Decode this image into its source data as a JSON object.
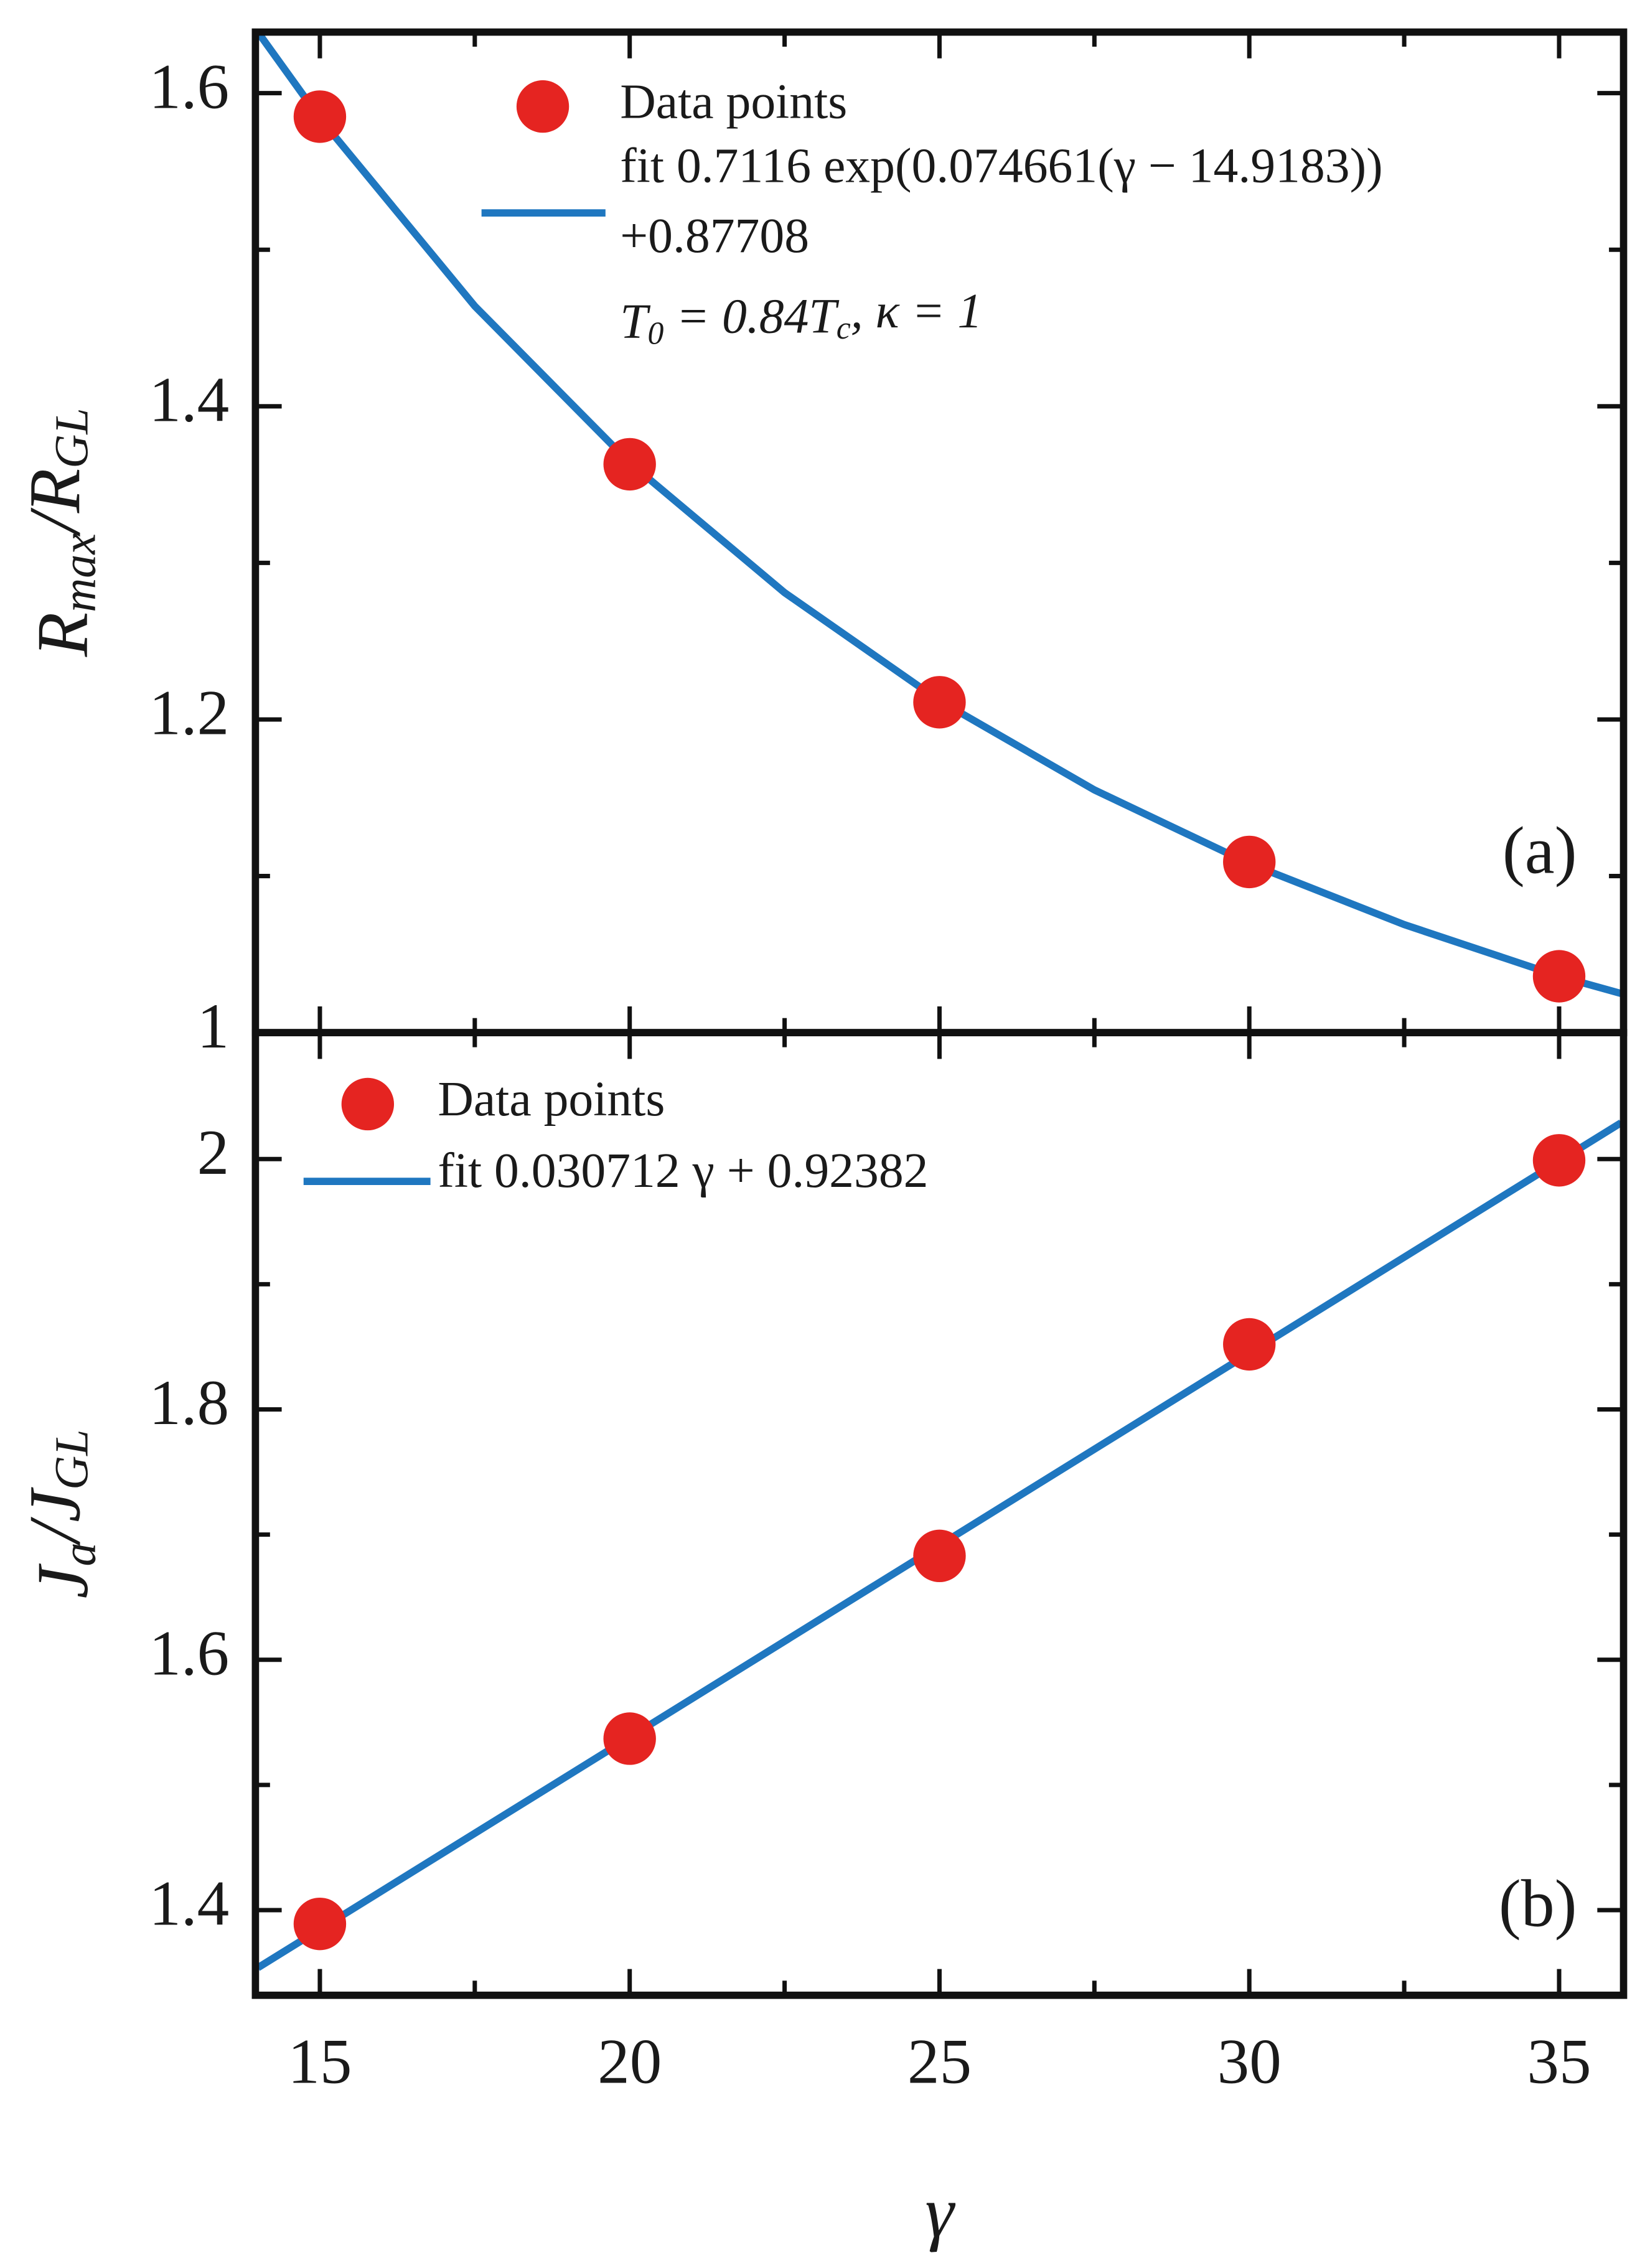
{
  "chart_data": [
    {
      "type": "scatter",
      "ylabel": [
        "R",
        "max",
        "/R",
        "GL"
      ],
      "annotation": [
        "T",
        "0",
        " = 0.84T",
        "c",
        ", κ = 1"
      ],
      "panel_label": "(a)",
      "xlim": [
        13.96,
        36.04
      ],
      "ylim": [
        1.0,
        1.639
      ],
      "xticks": [
        15,
        20,
        25,
        30,
        35
      ],
      "yticks": [
        1,
        1.2,
        1.4,
        1.6
      ],
      "series": [
        {
          "name": "Data points",
          "type": "scatter",
          "color": "#e52421",
          "x": [
            15,
            20,
            25,
            30,
            35
          ],
          "values": [
            1.585,
            1.363,
            1.211,
            1.109,
            1.036
          ]
        },
        {
          "name": [
            "fit 0.7116 exp(0.074661(γ − 14.9183))",
            "+0.87708"
          ],
          "type": "line",
          "color": "#1f77c0",
          "x": [
            14,
            15,
            17.5,
            20,
            22.5,
            25,
            27.5,
            30,
            32.5,
            35,
            36
          ],
          "values": [
            1.639,
            1.584,
            1.464,
            1.364,
            1.281,
            1.212,
            1.155,
            1.108,
            1.069,
            1.036,
            1.025
          ]
        }
      ]
    },
    {
      "type": "scatter",
      "ylabel": [
        "J",
        "a",
        "/J",
        "GL"
      ],
      "xlabel": "γ",
      "panel_label": "(b)",
      "xlim": [
        13.96,
        36.04
      ],
      "ylim": [
        1.332,
        2.101
      ],
      "xticks": [
        15,
        20,
        25,
        30,
        35
      ],
      "yticks": [
        1.4,
        1.6,
        1.8,
        2
      ],
      "series": [
        {
          "name": "Data points",
          "type": "scatter",
          "color": "#e52421",
          "x": [
            15,
            20,
            25,
            30,
            35
          ],
          "values": [
            1.389,
            1.537,
            1.683,
            1.852,
            1.999
          ]
        },
        {
          "name": "fit 0.030712 γ + 0.92382",
          "type": "line",
          "color": "#1f77c0",
          "x": [
            14,
            36
          ],
          "values": [
            1.354,
            2.029
          ]
        }
      ]
    }
  ]
}
